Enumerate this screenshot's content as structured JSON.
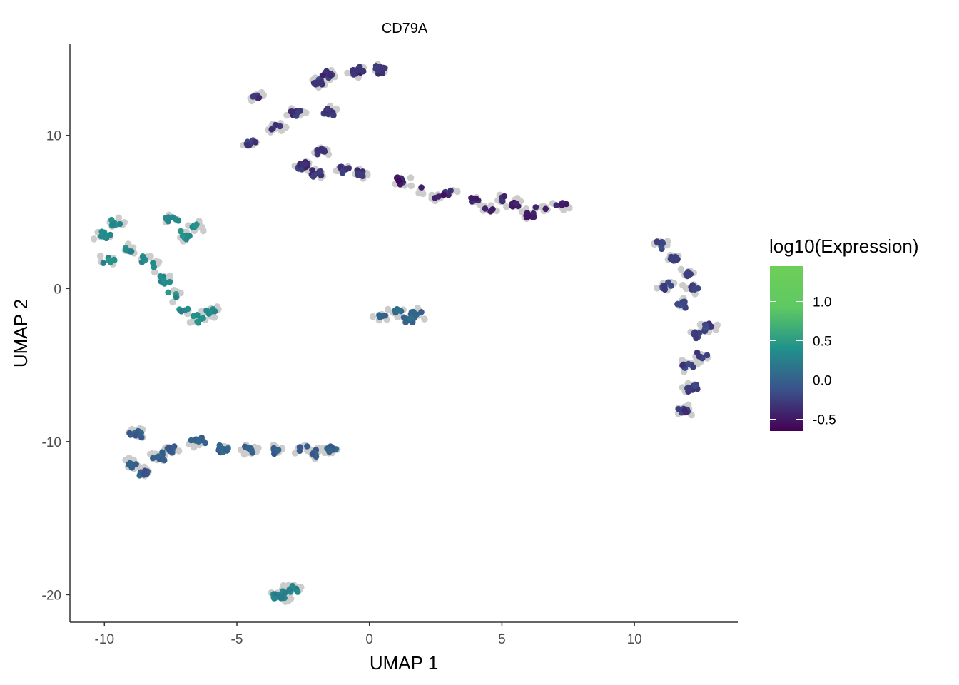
{
  "chart_data": {
    "type": "scatter",
    "title": "CD79A",
    "xlabel": "UMAP 1",
    "ylabel": "UMAP 2",
    "xlim": [
      -11.3,
      13.9
    ],
    "ylim": [
      -21.8,
      16.0
    ],
    "x_ticks": [
      -10,
      -5,
      0,
      5,
      10
    ],
    "y_ticks": [
      -20,
      -10,
      0,
      10
    ],
    "x_tick_labels": [
      "-10",
      "-5",
      "0",
      "5",
      "10"
    ],
    "y_tick_labels": [
      "-20",
      "-10",
      "0",
      "10"
    ],
    "grid": false,
    "background_point_color": "#cccccc",
    "legend": {
      "title": "log10(Expression)",
      "position": "right",
      "min": -0.65,
      "max": 1.45,
      "ticks": [
        1.0,
        0.5,
        0.0,
        -0.5
      ],
      "tick_labels": [
        "1.0",
        "0.5",
        "0.0",
        "-0.5"
      ],
      "colors": [
        "#440154",
        "#3b528b",
        "#21918c",
        "#5ec962"
      ]
    },
    "clusters": [
      {
        "name": "upper-left-cluster",
        "center": [
          -8.0,
          2.5
        ],
        "spread": [
          1.6,
          1.4
        ],
        "expression": 0.7,
        "points": [
          [
            -10.0,
            3.5
          ],
          [
            -9.5,
            4.2
          ],
          [
            -9.0,
            2.5
          ],
          [
            -8.5,
            2.0
          ],
          [
            -8.0,
            1.5
          ],
          [
            -7.5,
            4.5
          ],
          [
            -7.0,
            3.5
          ],
          [
            -6.5,
            4.0
          ],
          [
            -7.8,
            0.5
          ],
          [
            -7.3,
            -0.5
          ],
          [
            -7.0,
            -1.5
          ],
          [
            -6.5,
            -2.0
          ],
          [
            -6.0,
            -1.5
          ],
          [
            -9.8,
            1.8
          ]
        ]
      },
      {
        "name": "top-branching-cluster",
        "center": [
          -2.0,
          11.0
        ],
        "spread": [
          2.0,
          2.0
        ],
        "expression": -0.2,
        "points": [
          [
            -4.5,
            9.5
          ],
          [
            -4.2,
            12.5
          ],
          [
            -3.5,
            10.5
          ],
          [
            -2.8,
            11.5
          ],
          [
            -2.0,
            13.5
          ],
          [
            -1.5,
            14.0
          ],
          [
            -0.5,
            14.2
          ],
          [
            0.3,
            14.3
          ],
          [
            -1.8,
            9.0
          ],
          [
            -2.5,
            8.0
          ],
          [
            -2.0,
            7.5
          ],
          [
            -1.0,
            7.8
          ],
          [
            -0.3,
            7.5
          ],
          [
            -1.5,
            11.5
          ]
        ]
      },
      {
        "name": "diagonal-band-cluster",
        "center": [
          4.8,
          5.5
        ],
        "spread": [
          2.6,
          0.6
        ],
        "expression": -0.4,
        "points": [
          [
            1.2,
            7.0
          ],
          [
            2.0,
            6.5
          ],
          [
            3.0,
            6.2
          ],
          [
            4.0,
            5.8
          ],
          [
            4.5,
            5.2
          ],
          [
            5.5,
            5.5
          ],
          [
            6.0,
            4.8
          ],
          [
            6.5,
            5.2
          ],
          [
            7.2,
            5.6
          ],
          [
            7.5,
            5.2
          ],
          [
            2.5,
            6.0
          ],
          [
            5.0,
            6.0
          ]
        ]
      },
      {
        "name": "right-vertical-cluster",
        "center": [
          11.9,
          -3.0
        ],
        "spread": [
          0.6,
          4.8
        ],
        "expression": -0.1,
        "points": [
          [
            11.0,
            2.8
          ],
          [
            11.5,
            2.0
          ],
          [
            12.0,
            1.0
          ],
          [
            12.2,
            0.0
          ],
          [
            11.8,
            -1.0
          ],
          [
            12.3,
            -3.0
          ],
          [
            12.0,
            -5.0
          ],
          [
            12.2,
            -6.5
          ],
          [
            11.9,
            -8.0
          ],
          [
            12.5,
            -4.5
          ],
          [
            12.8,
            -2.5
          ],
          [
            11.2,
            0.2
          ]
        ]
      },
      {
        "name": "small-center-cluster",
        "center": [
          1.2,
          -1.8
        ],
        "spread": [
          0.7,
          0.25
        ],
        "expression": 0.3,
        "points": [
          [
            0.5,
            -1.8
          ],
          [
            1.0,
            -1.5
          ],
          [
            1.5,
            -2.0
          ],
          [
            1.7,
            -1.6
          ]
        ]
      },
      {
        "name": "lower-horizontal-cluster",
        "center": [
          -5.5,
          -10.8
        ],
        "spread": [
          3.8,
          0.7
        ],
        "expression": 0.2,
        "points": [
          [
            -9.0,
            -11.5
          ],
          [
            -8.5,
            -12.0
          ],
          [
            -8.8,
            -9.5
          ],
          [
            -7.5,
            -10.5
          ],
          [
            -6.5,
            -10.0
          ],
          [
            -5.5,
            -10.5
          ],
          [
            -4.5,
            -10.5
          ],
          [
            -3.5,
            -10.6
          ],
          [
            -2.5,
            -10.5
          ],
          [
            -2.0,
            -10.8
          ],
          [
            -1.5,
            -10.5
          ],
          [
            -8.0,
            -11.0
          ]
        ]
      },
      {
        "name": "bottom-small-cluster",
        "center": [
          -3.1,
          -19.8
        ],
        "spread": [
          0.3,
          0.2
        ],
        "expression": 0.6,
        "points": [
          [
            -3.4,
            -20.1
          ],
          [
            -3.2,
            -19.9
          ],
          [
            -3.0,
            -19.7
          ],
          [
            -2.8,
            -19.6
          ]
        ]
      }
    ]
  }
}
